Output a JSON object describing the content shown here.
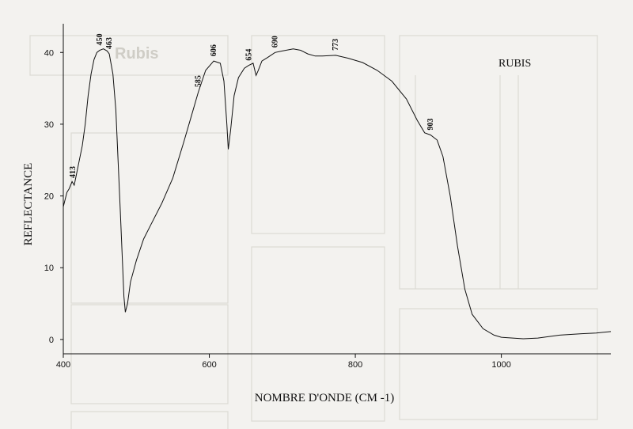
{
  "chart_data": {
    "type": "line",
    "title": "RUBIS",
    "xlabel": "NOMBRE D'ONDE (CM -1)",
    "ylabel": "REFLECTANCE",
    "xlim": [
      400,
      1150
    ],
    "ylim": [
      -2,
      44
    ],
    "x_ticks": [
      400,
      600,
      800,
      1000
    ],
    "y_ticks": [
      0,
      10,
      20,
      30,
      40
    ],
    "grid": false,
    "series": [
      {
        "points": [
          [
            400,
            18.5
          ],
          [
            405,
            20.5
          ],
          [
            408,
            21.0
          ],
          [
            412,
            22.0
          ],
          [
            415,
            21.5
          ],
          [
            418,
            23.0
          ],
          [
            422,
            25.0
          ],
          [
            426,
            27.0
          ],
          [
            430,
            30.0
          ],
          [
            434,
            34.0
          ],
          [
            438,
            37.0
          ],
          [
            442,
            39.0
          ],
          [
            446,
            40.0
          ],
          [
            450,
            40.3
          ],
          [
            455,
            40.5
          ],
          [
            460,
            40.2
          ],
          [
            463,
            39.8
          ],
          [
            468,
            37.0
          ],
          [
            472,
            32.0
          ],
          [
            475,
            25.0
          ],
          [
            478,
            18.0
          ],
          [
            481,
            11.0
          ],
          [
            483,
            6.0
          ],
          [
            485,
            3.8
          ],
          [
            488,
            5.0
          ],
          [
            492,
            8.0
          ],
          [
            500,
            11.0
          ],
          [
            510,
            14.0
          ],
          [
            520,
            16.0
          ],
          [
            535,
            19.0
          ],
          [
            550,
            22.5
          ],
          [
            565,
            27.5
          ],
          [
            575,
            31.0
          ],
          [
            585,
            34.5
          ],
          [
            595,
            37.5
          ],
          [
            606,
            38.8
          ],
          [
            615,
            38.5
          ],
          [
            620,
            36.0
          ],
          [
            624,
            30.0
          ],
          [
            626,
            26.5
          ],
          [
            629,
            29.0
          ],
          [
            634,
            34.0
          ],
          [
            640,
            36.5
          ],
          [
            648,
            37.8
          ],
          [
            654,
            38.2
          ],
          [
            660,
            38.5
          ],
          [
            664,
            36.8
          ],
          [
            667,
            37.5
          ],
          [
            672,
            38.8
          ],
          [
            680,
            39.3
          ],
          [
            690,
            40.0
          ],
          [
            700,
            40.2
          ],
          [
            715,
            40.5
          ],
          [
            725,
            40.3
          ],
          [
            735,
            39.8
          ],
          [
            745,
            39.5
          ],
          [
            755,
            39.5
          ],
          [
            773,
            39.6
          ],
          [
            790,
            39.2
          ],
          [
            810,
            38.6
          ],
          [
            830,
            37.5
          ],
          [
            850,
            36.0
          ],
          [
            870,
            33.5
          ],
          [
            885,
            30.5
          ],
          [
            895,
            28.8
          ],
          [
            903,
            28.5
          ],
          [
            912,
            27.8
          ],
          [
            920,
            25.5
          ],
          [
            930,
            20.0
          ],
          [
            940,
            13.0
          ],
          [
            950,
            7.0
          ],
          [
            960,
            3.5
          ],
          [
            975,
            1.5
          ],
          [
            990,
            0.6
          ],
          [
            1000,
            0.3
          ],
          [
            1030,
            0.1
          ],
          [
            1050,
            0.2
          ],
          [
            1080,
            0.6
          ],
          [
            1110,
            0.8
          ],
          [
            1130,
            0.9
          ],
          [
            1150,
            1.1
          ]
        ]
      }
    ],
    "annotations": [
      {
        "text": "413",
        "x": 413
      },
      {
        "text": "450",
        "x": 450
      },
      {
        "text": "463",
        "x": 463
      },
      {
        "text": "585",
        "x": 585
      },
      {
        "text": "606",
        "x": 606
      },
      {
        "text": "654",
        "x": 654
      },
      {
        "text": "690",
        "x": 690
      },
      {
        "text": "773",
        "x": 773
      },
      {
        "text": "903",
        "x": 903
      }
    ]
  }
}
